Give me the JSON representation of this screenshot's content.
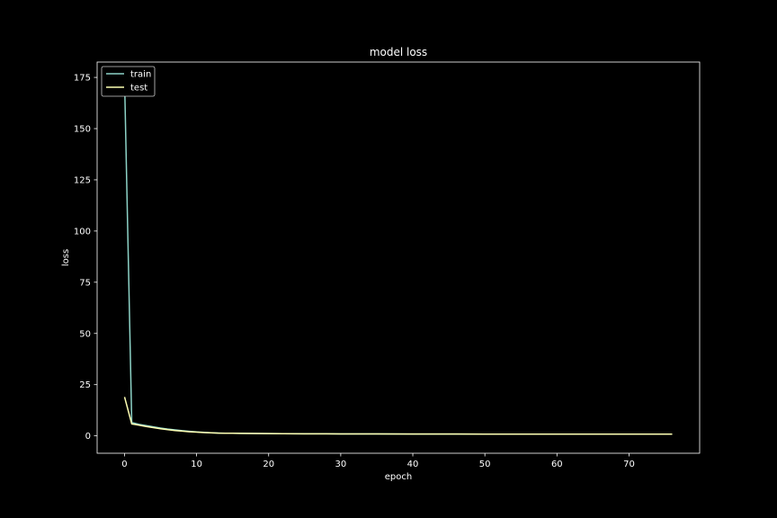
{
  "chart_data": {
    "type": "line",
    "title": "model loss",
    "xlabel": "epoch",
    "ylabel": "loss",
    "xlim": [
      -3.8,
      79.8
    ],
    "ylim": [
      -8.5,
      182.5
    ],
    "xticks": [
      0,
      10,
      20,
      30,
      40,
      50,
      60,
      70
    ],
    "yticks": [
      0,
      25,
      50,
      75,
      100,
      125,
      150,
      175
    ],
    "grid": false,
    "legend_position": "upper-left",
    "background": "#000000",
    "series": [
      {
        "name": "train",
        "color": "#8dd3c7",
        "x": [
          0,
          1,
          2,
          3,
          4,
          5,
          6,
          7,
          8,
          9,
          10,
          11,
          12,
          13,
          14,
          15,
          16,
          18,
          20,
          22,
          25,
          28,
          30,
          35,
          40,
          45,
          50,
          55,
          60,
          65,
          70,
          76
        ],
        "values": [
          174,
          6.5,
          5.6,
          5.0,
          4.4,
          3.8,
          3.3,
          2.9,
          2.5,
          2.2,
          1.9,
          1.7,
          1.5,
          1.4,
          1.3,
          1.25,
          1.2,
          1.15,
          1.1,
          1.05,
          1.0,
          0.98,
          0.95,
          0.92,
          0.9,
          0.88,
          0.86,
          0.85,
          0.84,
          0.83,
          0.82,
          0.8
        ]
      },
      {
        "name": "test",
        "color": "#feffb3",
        "x": [
          0,
          1,
          2,
          3,
          4,
          5,
          6,
          7,
          8,
          9,
          10,
          11,
          12,
          13,
          14,
          15,
          16,
          18,
          20,
          22,
          25,
          28,
          30,
          35,
          40,
          45,
          50,
          55,
          60,
          65,
          70,
          76
        ],
        "values": [
          19,
          5.8,
          5.2,
          4.6,
          4.0,
          3.5,
          3.0,
          2.6,
          2.3,
          2.0,
          1.8,
          1.6,
          1.45,
          1.35,
          1.3,
          1.25,
          1.2,
          1.15,
          1.1,
          1.05,
          1.0,
          0.98,
          0.95,
          0.92,
          0.9,
          0.88,
          0.86,
          0.85,
          0.84,
          0.83,
          0.82,
          0.8
        ]
      }
    ]
  }
}
